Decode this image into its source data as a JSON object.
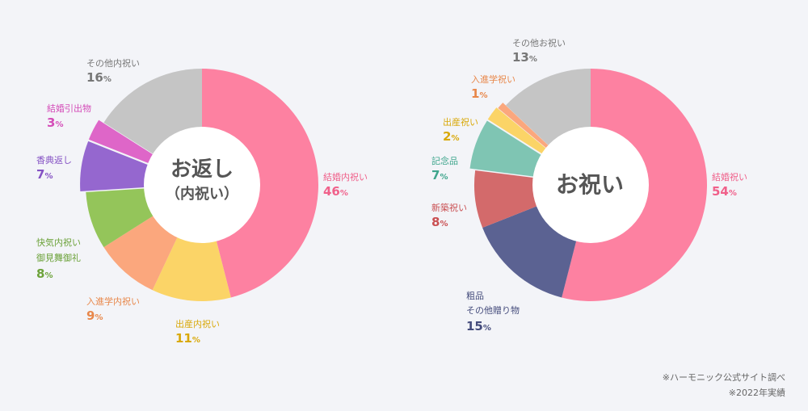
{
  "chart_data": [
    {
      "type": "pie",
      "center_label": [
        "お返し",
        "（内祝い）"
      ],
      "unit": "%",
      "slices": [
        {
          "name": "結婚内祝い",
          "value": 46,
          "color": "#fd81a1"
        },
        {
          "name": "出産内祝い",
          "value": 11,
          "color": "#fbd467"
        },
        {
          "name": "入進学内祝い",
          "value": 9,
          "color": "#fba77d"
        },
        {
          "name": "快気内祝い\n御見舞御礼",
          "value": 8,
          "color": "#94c55a"
        },
        {
          "name": "香典返し",
          "value": 7,
          "color": "#9567cf"
        },
        {
          "name": "結婚引出物",
          "value": 3,
          "color": "#de66c8"
        },
        {
          "name": "その他内祝い",
          "value": 16,
          "color": "#c5c5c5"
        }
      ]
    },
    {
      "type": "pie",
      "center_label": [
        "お祝い"
      ],
      "unit": "%",
      "slices": [
        {
          "name": "結婚祝い",
          "value": 54,
          "color": "#fd81a1"
        },
        {
          "name": "粗品\nその他贈り物",
          "value": 15,
          "color": "#5b6292"
        },
        {
          "name": "新築祝い",
          "value": 8,
          "color": "#d36a6b"
        },
        {
          "name": "記念品",
          "value": 7,
          "color": "#7fc5b3"
        },
        {
          "name": "出産祝い",
          "value": 2,
          "color": "#fbd467"
        },
        {
          "name": "入進学祝い",
          "value": 1,
          "color": "#fba77d"
        },
        {
          "name": "その他お祝い",
          "value": 13,
          "color": "#c5c5c5"
        }
      ]
    }
  ],
  "footnote": [
    "※ハーモニック公式サイト調べ",
    "※2022年実績"
  ]
}
